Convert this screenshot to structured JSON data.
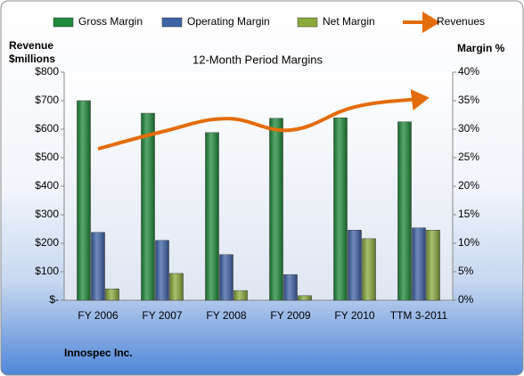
{
  "chart_data": {
    "type": "bar-line",
    "title": "12-Month Period Margins",
    "ylabel": [
      "Revenue",
      "$millions"
    ],
    "y2label": "Margin %",
    "note": "Innospec Inc.",
    "categories": [
      "FY 2006",
      "FY 2007",
      "FY 2008",
      "FY 2009",
      "FY 2010",
      "TTM 3-2011"
    ],
    "series": [
      {
        "name": "Gross Margin",
        "color": "#1f8a3b",
        "axis": "y2",
        "kind": "bar",
        "values": [
          35.0,
          32.8,
          29.4,
          31.9,
          32.0,
          31.3
        ]
      },
      {
        "name": "Operating Margin",
        "color": "#3d63a6",
        "axis": "y2",
        "kind": "bar",
        "values": [
          11.9,
          10.5,
          8.0,
          4.5,
          12.3,
          12.7
        ]
      },
      {
        "name": "Net Margin",
        "color": "#8aab3c",
        "axis": "y2",
        "kind": "bar",
        "values": [
          2.0,
          4.7,
          1.7,
          0.8,
          10.8,
          12.3
        ]
      },
      {
        "name": "Revenues",
        "color": "#e46c0a",
        "kind": "line",
        "values": [
          531,
          591,
          637,
          597,
          678,
          706
        ]
      }
    ],
    "ylim": [
      0,
      800
    ],
    "yticks": [
      {
        "value": 0,
        "label": "$-"
      },
      {
        "value": 100,
        "label": "$100"
      },
      {
        "value": 200,
        "label": "$200"
      },
      {
        "value": 300,
        "label": "$300"
      },
      {
        "value": 400,
        "label": "$400"
      },
      {
        "value": 500,
        "label": "$500"
      },
      {
        "value": 600,
        "label": "$600"
      },
      {
        "value": 700,
        "label": "$700"
      },
      {
        "value": 800,
        "label": "$800"
      }
    ],
    "y2lim": [
      0,
      40
    ],
    "y2ticks": [
      {
        "value": 0,
        "label": "0%"
      },
      {
        "value": 5,
        "label": "5%"
      },
      {
        "value": 10,
        "label": "10%"
      },
      {
        "value": 15,
        "label": "15%"
      },
      {
        "value": 20,
        "label": "20%"
      },
      {
        "value": 25,
        "label": "25%"
      },
      {
        "value": 30,
        "label": "30%"
      },
      {
        "value": 35,
        "label": "35%"
      },
      {
        "value": 40,
        "label": "40%"
      }
    ],
    "grid": false,
    "legend": "top"
  }
}
